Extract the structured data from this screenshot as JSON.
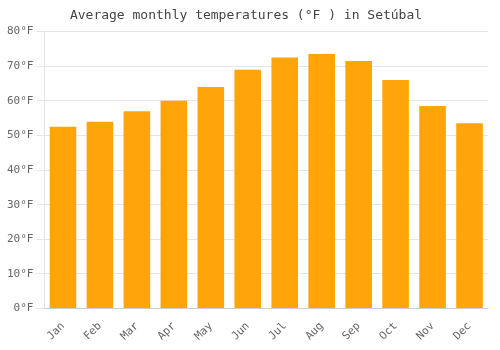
{
  "chart_data": {
    "type": "bar",
    "title": "Average monthly temperatures (°F ) in Setúbal",
    "categories": [
      "Jan",
      "Feb",
      "Mar",
      "Apr",
      "May",
      "Jun",
      "Jul",
      "Aug",
      "Sep",
      "Oct",
      "Nov",
      "Dec"
    ],
    "values": [
      52.5,
      54.0,
      57.0,
      60.0,
      64.0,
      69.0,
      72.5,
      73.5,
      71.5,
      66.0,
      58.5,
      53.5
    ],
    "color": "#FFA50A",
    "ylim": [
      0,
      80
    ],
    "yticks": [
      {
        "value": 0,
        "label": "0°F"
      },
      {
        "value": 10,
        "label": "10°F"
      },
      {
        "value": 20,
        "label": "20°F"
      },
      {
        "value": 30,
        "label": "30°F"
      },
      {
        "value": 40,
        "label": "40°F"
      },
      {
        "value": 50,
        "label": "50°F"
      },
      {
        "value": 60,
        "label": "60°F"
      },
      {
        "value": 70,
        "label": "70°F"
      },
      {
        "value": 80,
        "label": "80°F"
      }
    ],
    "grid": true
  }
}
